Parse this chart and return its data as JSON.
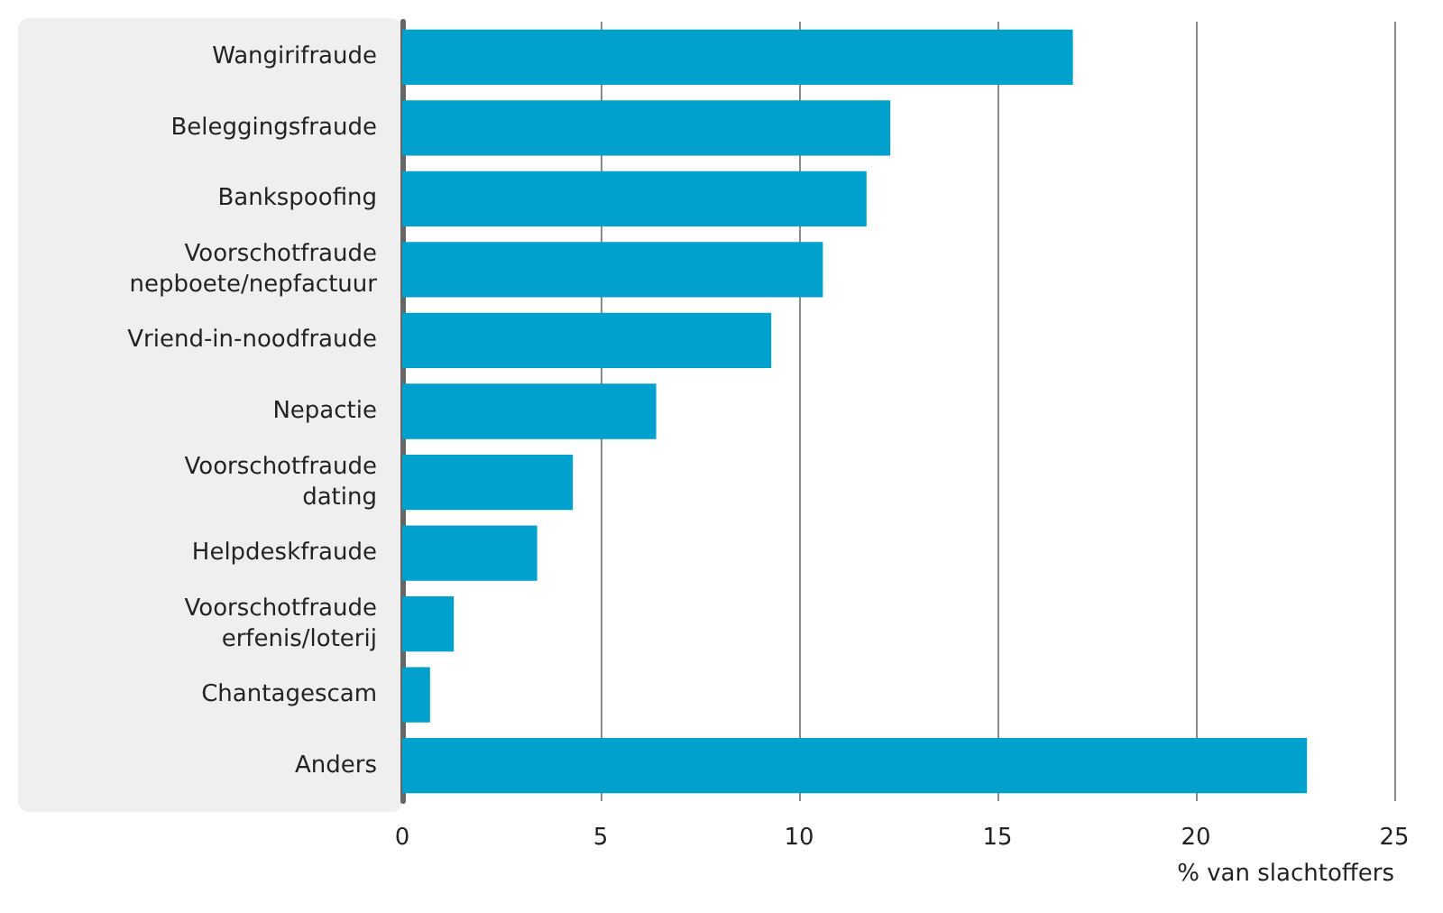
{
  "chart_data": {
    "type": "bar",
    "orientation": "horizontal",
    "xlabel": "% van slachtoffers",
    "categories": [
      "Wangirifraude",
      "Beleggingsfraude",
      "Bankspoofing",
      "Voorschotfraude\nnepboete/nepfactuur",
      "Vriend-in-noodfraude",
      "Nepactie",
      "Voorschotfraude\ndating",
      "Helpdeskfraude",
      "Voorschotfraude\nerfenis/loterij",
      "Chantagescam",
      "Anders"
    ],
    "values": [
      16.9,
      12.3,
      11.7,
      10.6,
      9.3,
      6.4,
      4.3,
      3.4,
      1.3,
      0.7,
      22.8
    ],
    "color": "#00a1cd",
    "xlim": [
      0,
      25
    ],
    "xticks": [
      0,
      5,
      10,
      15,
      20,
      25
    ],
    "grid": "x"
  }
}
